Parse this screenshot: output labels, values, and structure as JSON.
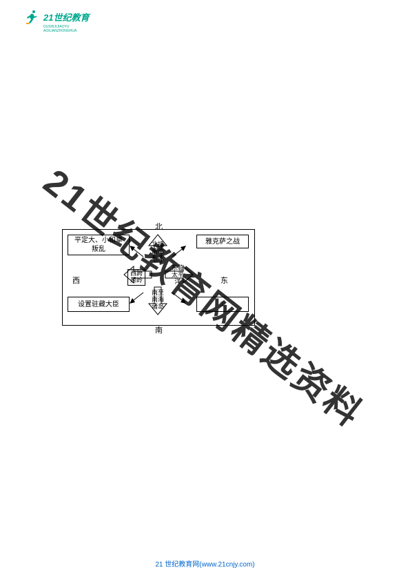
{
  "logo": {
    "brand": "21世纪教育",
    "subtitle": "DUSHIJIJIAOYU AOILIANZHONGHUA"
  },
  "diagram": {
    "dir_n": "北",
    "dir_s": "南",
    "dir_w": "西",
    "dir_e": "东",
    "box_tl": "平定大、小和卓\n叛乱",
    "box_tr": "雅克萨之战",
    "box_bl": "设置驻藏大臣",
    "box_br": "①",
    "center_n": "北接\n西伯\n利亚",
    "center_s": "南至\n南海\n诸岛",
    "center_w": "西跨\n葱岭",
    "center_e": "东临\n太平洋",
    "colors": {
      "stroke": "#000000",
      "arrow_fill": "#ffffff"
    }
  },
  "watermark": "21世纪教育网精选资料",
  "footer": "21 世纪教育网(www.21cnjy.com)"
}
